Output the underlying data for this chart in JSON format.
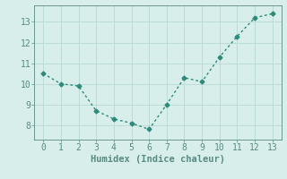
{
  "x": [
    0,
    1,
    2,
    3,
    4,
    5,
    6,
    7,
    8,
    9,
    10,
    11,
    12,
    13
  ],
  "y": [
    10.5,
    10.0,
    9.9,
    8.7,
    8.3,
    8.1,
    7.8,
    9.0,
    10.3,
    10.1,
    11.3,
    12.3,
    13.2,
    13.4
  ],
  "line_color": "#2e8b7a",
  "marker": "D",
  "marker_size": 2.5,
  "line_width": 1.0,
  "background_color": "#d7eeeb",
  "grid_color": "#b8d8d4",
  "axis_color": "#5a8a82",
  "xlabel": "Humidex (Indice chaleur)",
  "xlabel_fontsize": 7.5,
  "tick_fontsize": 7,
  "xlim": [
    -0.5,
    13.5
  ],
  "ylim": [
    7.3,
    13.8
  ],
  "yticks": [
    8,
    9,
    10,
    11,
    12,
    13
  ],
  "xticks": [
    0,
    1,
    2,
    3,
    4,
    5,
    6,
    7,
    8,
    9,
    10,
    11,
    12,
    13
  ]
}
